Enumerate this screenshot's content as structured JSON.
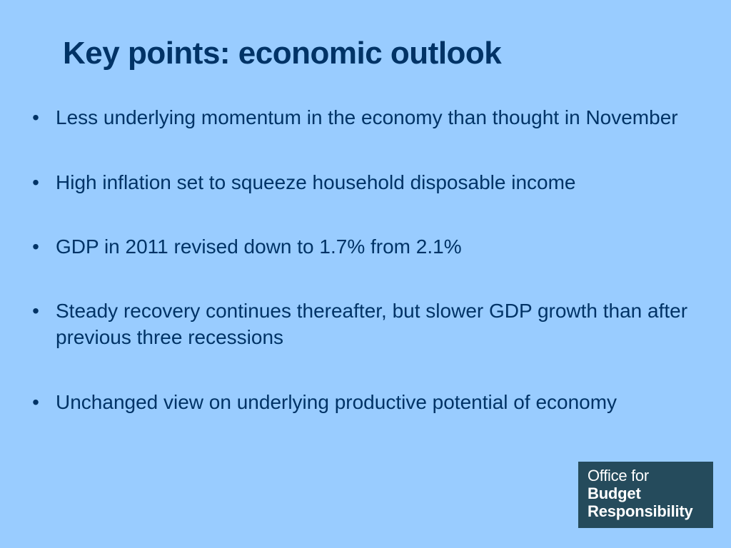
{
  "slide": {
    "title": "Key points: economic outlook"
  },
  "bullets": [
    {
      "marker": "•",
      "text": "Less underlying momentum in the economy than thought in November"
    },
    {
      "marker": "•",
      "text": "High inflation set to squeeze household disposable income"
    },
    {
      "marker": "•",
      "text": "GDP in 2011 revised down to 1.7% from 2.1%"
    },
    {
      "marker": "•",
      "text": "Steady recovery continues thereafter, but slower GDP growth than after previous three recessions"
    },
    {
      "marker": "•",
      "text": "Unchanged view on underlying productive potential of economy"
    }
  ],
  "logo": {
    "line1": "Office for",
    "line2": "Budget",
    "line3": "Responsibility"
  },
  "colors": {
    "background": "#99ccff",
    "text": "#003366",
    "logo_background": "#254b5c"
  }
}
